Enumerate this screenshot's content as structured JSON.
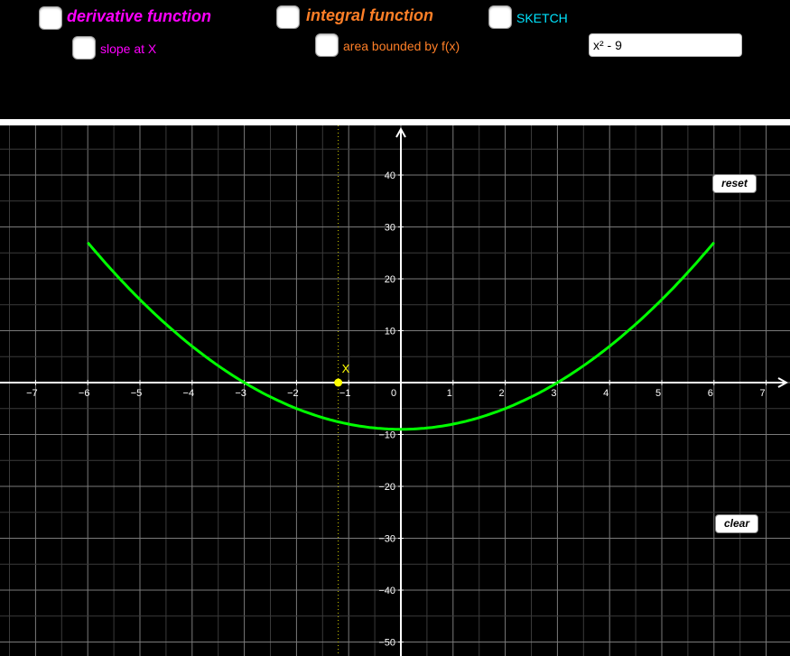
{
  "controls": {
    "derivative": {
      "label": "derivative function",
      "checked": false,
      "color": "#ff00ff"
    },
    "slope": {
      "label": "slope at X",
      "checked": false,
      "color": "#ff00ff"
    },
    "integral": {
      "label": "integral function",
      "checked": false,
      "color": "#ff7f27"
    },
    "area": {
      "label": "area bounded by f(x)",
      "checked": false,
      "color": "#ff7f27"
    },
    "sketch": {
      "label": "SKETCH",
      "checked": false,
      "color": "#00e5ff"
    },
    "function_input": {
      "value": "x² - 9"
    }
  },
  "buttons": {
    "reset": "reset",
    "clear": "clear"
  },
  "graph": {
    "x_ticks": [
      "−7",
      "−6",
      "−5",
      "−4",
      "−3",
      "−2",
      "−1",
      "0",
      "1",
      "2",
      "3",
      "4",
      "5",
      "6",
      "7"
    ],
    "y_ticks": [
      "40",
      "30",
      "20",
      "10",
      "−10",
      "−20",
      "−30",
      "−40",
      "−50"
    ],
    "point_label": "X",
    "point_x": -1.2,
    "curve_color": "#00ff00",
    "point_color": "#ffff00",
    "chart_data": {
      "type": "line",
      "series": [
        {
          "name": "f(x)",
          "x": [
            -6,
            -5,
            -4,
            -3,
            -2,
            -1,
            0,
            1,
            2,
            3,
            4,
            5,
            6
          ],
          "y": [
            27,
            16,
            7,
            0,
            -5,
            -8,
            -9,
            -8,
            -5,
            0,
            7,
            16,
            27
          ]
        }
      ],
      "xlim": [
        -7.7,
        7.4
      ],
      "ylim": [
        -52,
        49
      ],
      "grid": true
    }
  }
}
